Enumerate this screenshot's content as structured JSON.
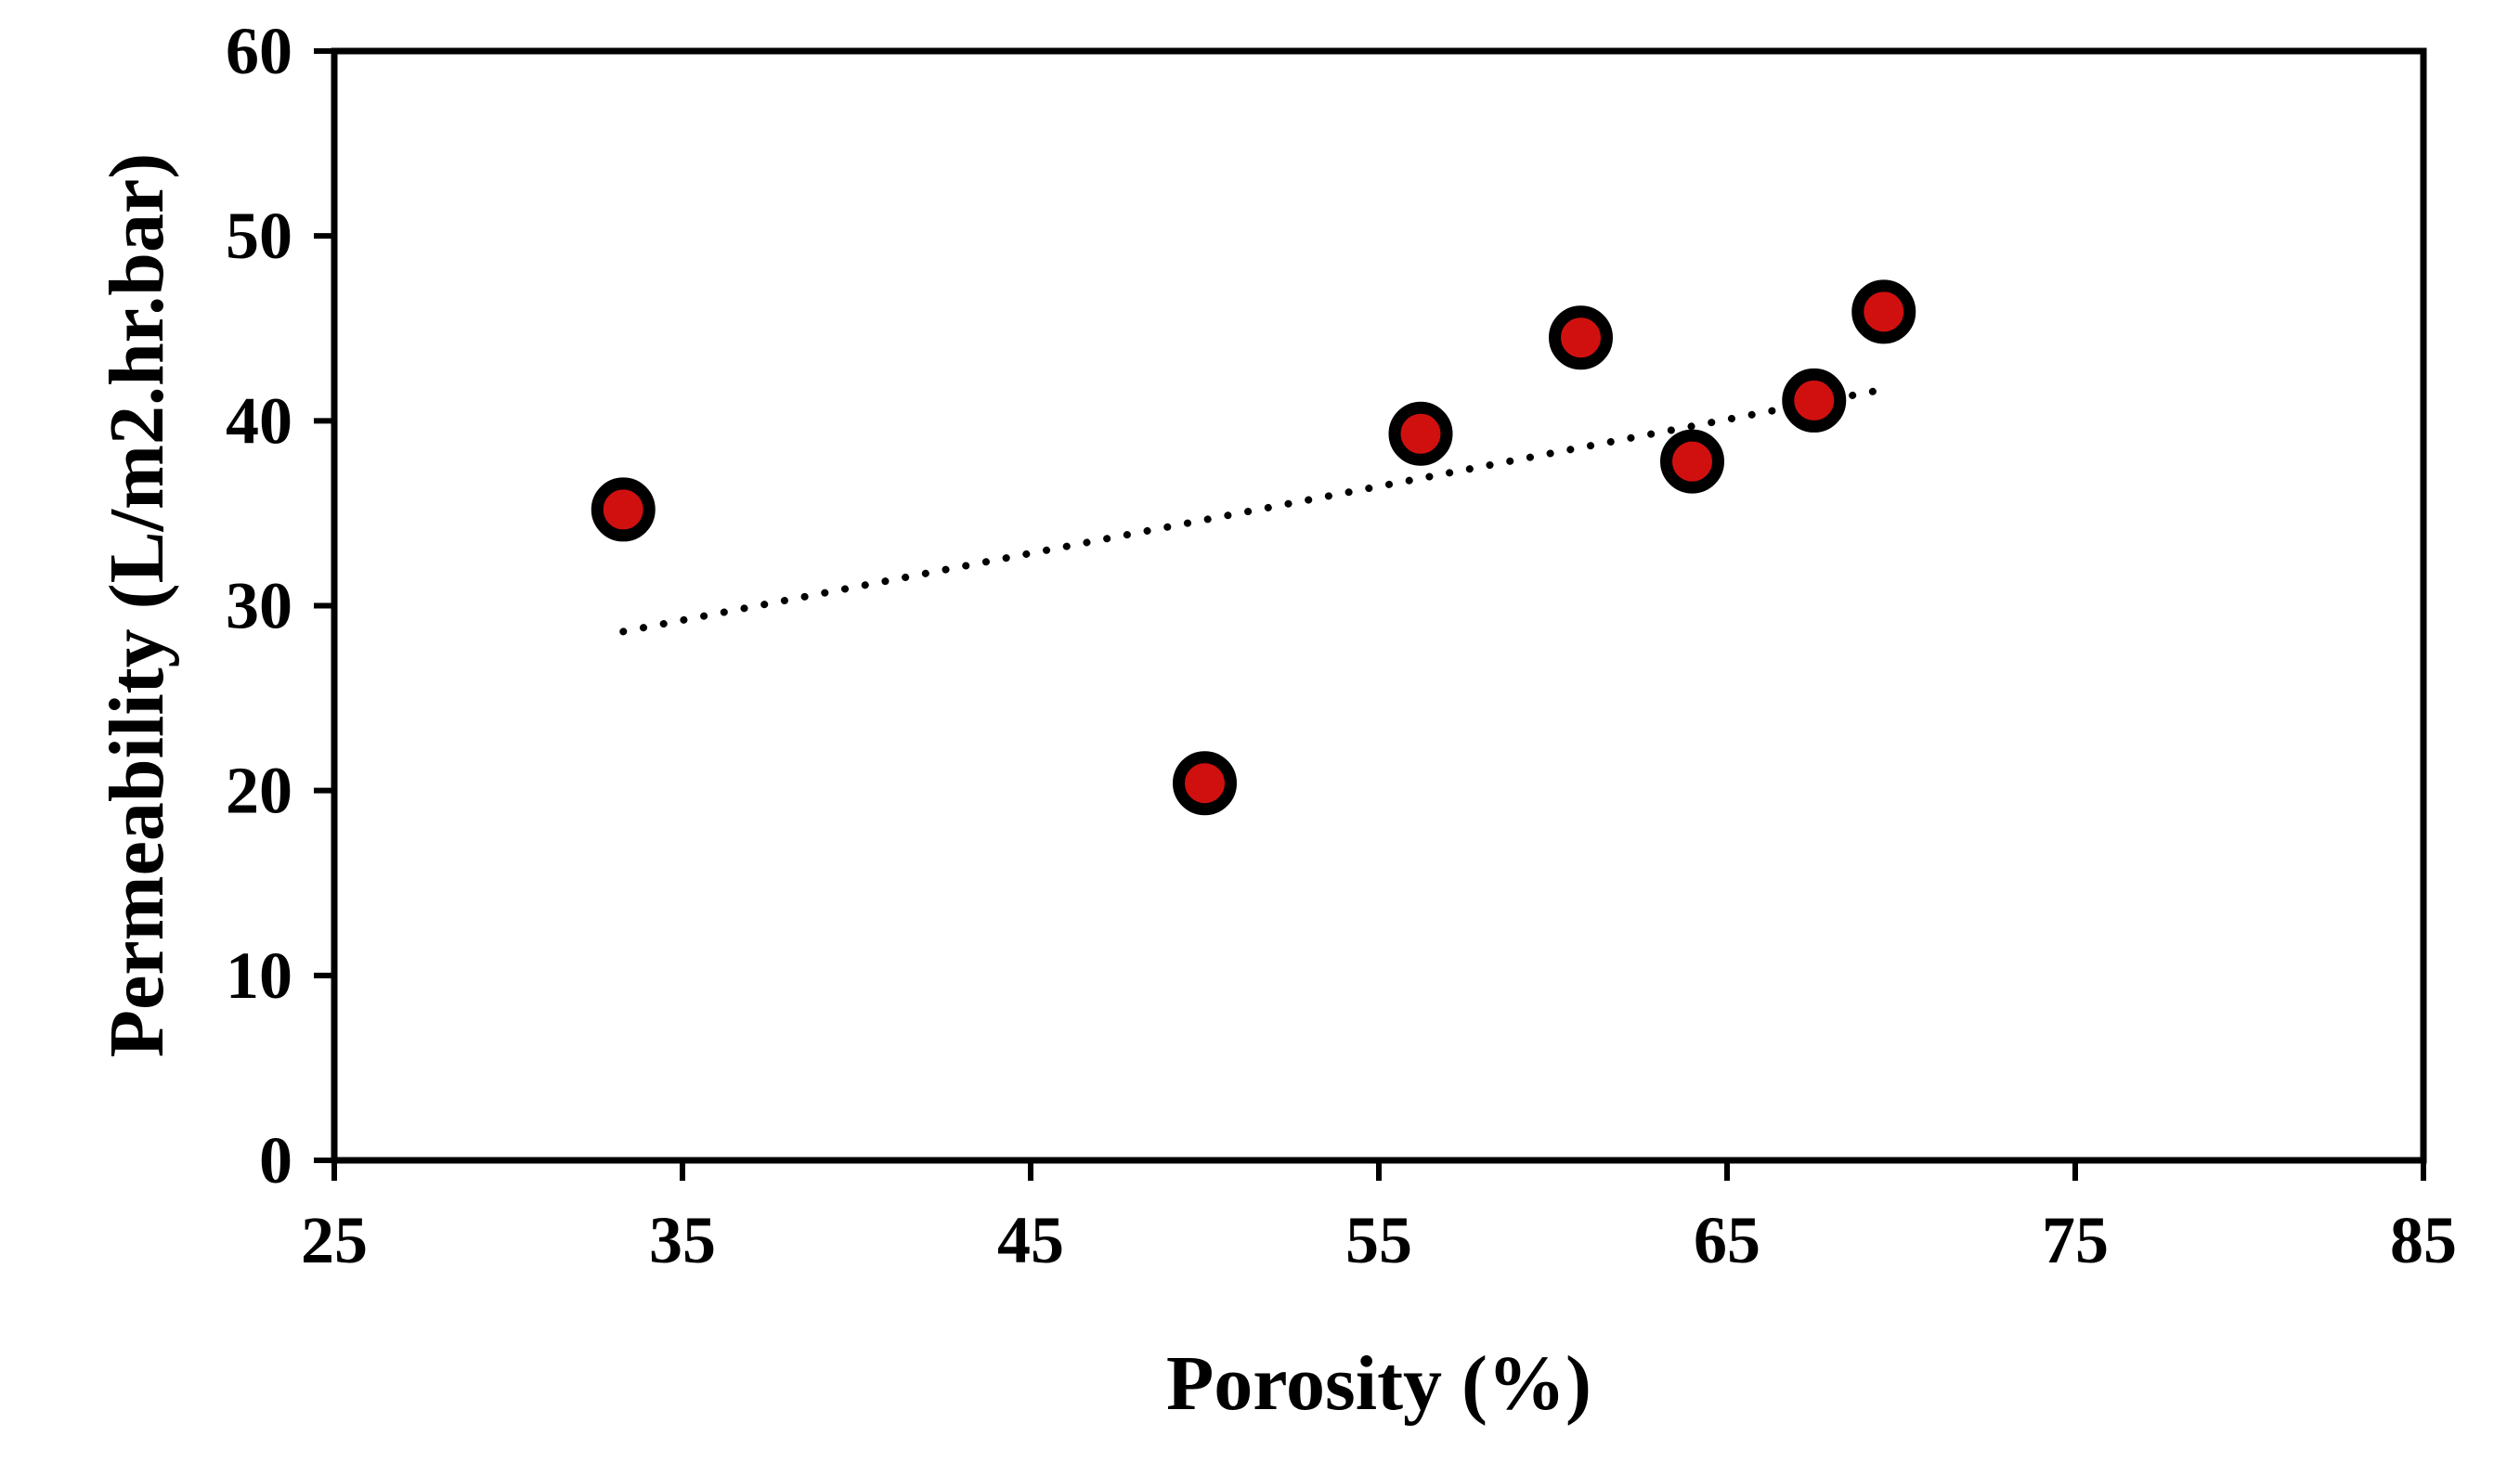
{
  "chart_data": {
    "type": "scatter",
    "title": "",
    "xlabel": "Porosity (%)",
    "ylabel": "Permeability (L/m2.hr.bar)",
    "xlim": [
      25,
      85
    ],
    "ylim": [
      0,
      60
    ],
    "xticks": [
      25,
      35,
      45,
      55,
      65,
      75,
      85
    ],
    "yticks": [
      0,
      10,
      20,
      30,
      40,
      50,
      60
    ],
    "grid": false,
    "legend": "none",
    "points": [
      {
        "x": 33.3,
        "y": 35.2
      },
      {
        "x": 50.0,
        "y": 20.4
      },
      {
        "x": 56.2,
        "y": 39.3
      },
      {
        "x": 60.8,
        "y": 44.5
      },
      {
        "x": 64.0,
        "y": 37.8
      },
      {
        "x": 67.5,
        "y": 41.1
      },
      {
        "x": 69.5,
        "y": 45.9
      }
    ],
    "trendline": {
      "style": "dotted",
      "start": {
        "x": 33.3,
        "y": 28.6
      },
      "end": {
        "x": 69.5,
        "y": 41.7
      }
    },
    "colors": {
      "marker_fill": "#d0100f",
      "marker_edge": "#000000",
      "axis": "#000000",
      "trendline": "#000000"
    }
  }
}
